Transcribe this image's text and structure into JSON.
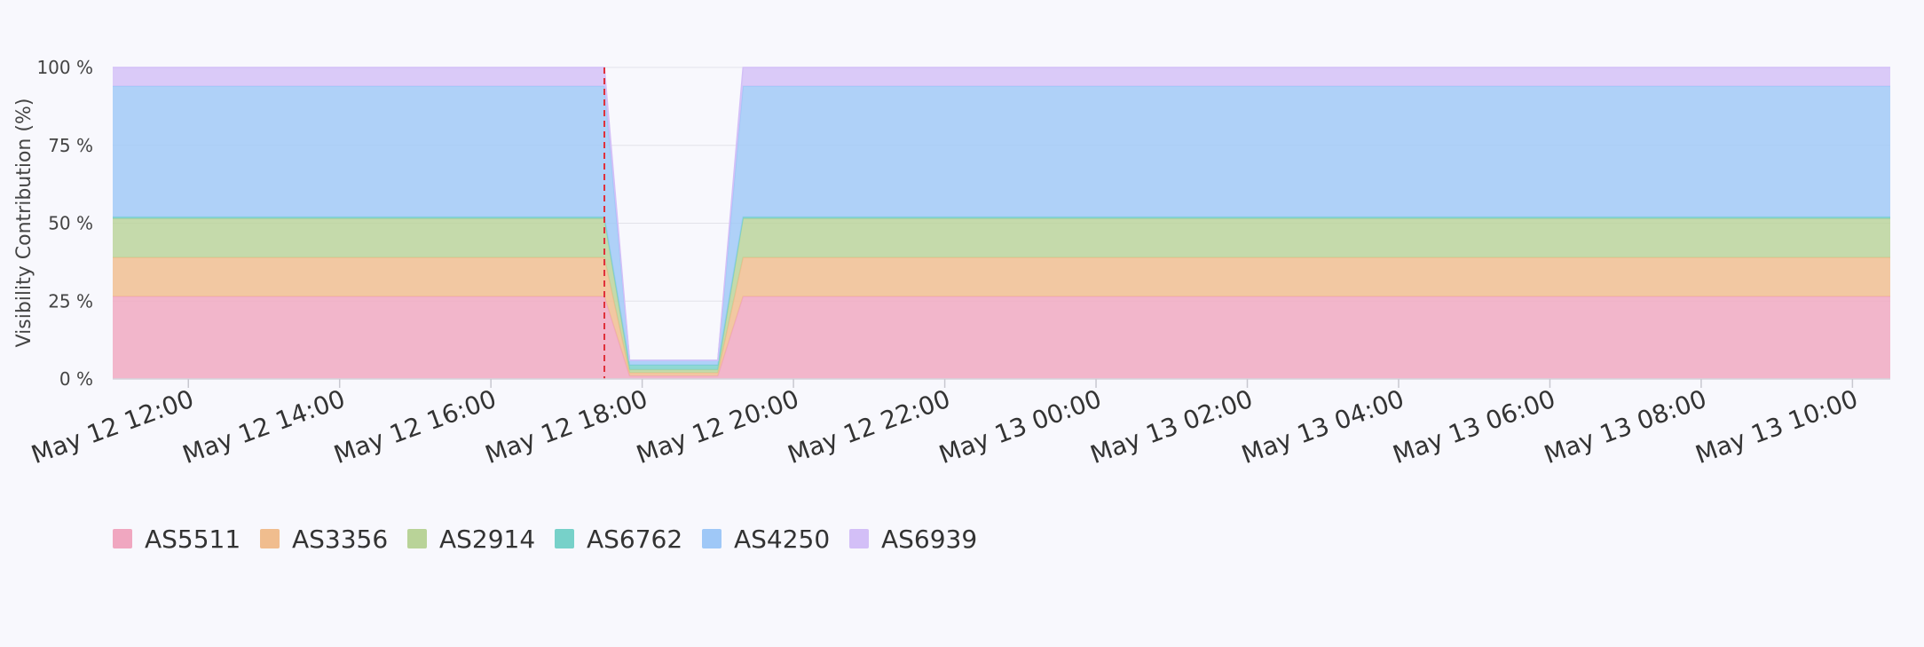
{
  "chart_data": {
    "type": "area",
    "stacked": true,
    "normalized_percent": true,
    "ylabel": "Visibility Contribution (%)",
    "ylim": [
      0,
      100
    ],
    "yticks": [
      0,
      25,
      50,
      75,
      100
    ],
    "ytick_labels": [
      "0 %",
      "25 %",
      "50 %",
      "75 %",
      "100 %"
    ],
    "x_range": [
      "2024-05-12 11:00",
      "2024-05-13 10:30"
    ],
    "x_ticks": [
      {
        "t": "2024-05-12 12:00",
        "label": "May 12 12:00"
      },
      {
        "t": "2024-05-12 14:00",
        "label": "May 12 14:00"
      },
      {
        "t": "2024-05-12 16:00",
        "label": "May 12 16:00"
      },
      {
        "t": "2024-05-12 18:00",
        "label": "May 12 18:00"
      },
      {
        "t": "2024-05-12 20:00",
        "label": "May 12 20:00"
      },
      {
        "t": "2024-05-12 22:00",
        "label": "May 12 22:00"
      },
      {
        "t": "2024-05-13 00:00",
        "label": "May 13 00:00"
      },
      {
        "t": "2024-05-13 02:00",
        "label": "May 13 02:00"
      },
      {
        "t": "2024-05-13 04:00",
        "label": "May 13 04:00"
      },
      {
        "t": "2024-05-13 06:00",
        "label": "May 13 06:00"
      },
      {
        "t": "2024-05-13 08:00",
        "label": "May 13 08:00"
      },
      {
        "t": "2024-05-13 10:00",
        "label": "May 13 10:00"
      }
    ],
    "grid": true,
    "legend_position": "bottom-left",
    "event_marker_time": "2024-05-12 17:30",
    "x": [
      "2024-05-12 11:00",
      "2024-05-12 17:30",
      "2024-05-12 17:50",
      "2024-05-12 19:00",
      "2024-05-12 19:20",
      "2024-05-13 10:30"
    ],
    "series": [
      {
        "name": "AS5511",
        "color": "#f0a7c0",
        "values": [
          26.5,
          26.5,
          1,
          1,
          26.5,
          26.5
        ]
      },
      {
        "name": "AS3356",
        "color": "#f0bd8e",
        "values": [
          12.5,
          12.5,
          1,
          1,
          12.5,
          12.5
        ]
      },
      {
        "name": "AS2914",
        "color": "#b9d398",
        "values": [
          12.5,
          12.5,
          1,
          1,
          12.5,
          12.5
        ]
      },
      {
        "name": "AS6762",
        "color": "#77d1c9",
        "values": [
          0.5,
          0.5,
          1.5,
          1.5,
          0.5,
          0.5
        ]
      },
      {
        "name": "AS4250",
        "color": "#9fc8f7",
        "values": [
          42,
          42,
          1.5,
          1.5,
          42,
          42
        ]
      },
      {
        "name": "AS6939",
        "color": "#d3bff7",
        "values": [
          6,
          6,
          0,
          0,
          6,
          6
        ]
      }
    ]
  }
}
